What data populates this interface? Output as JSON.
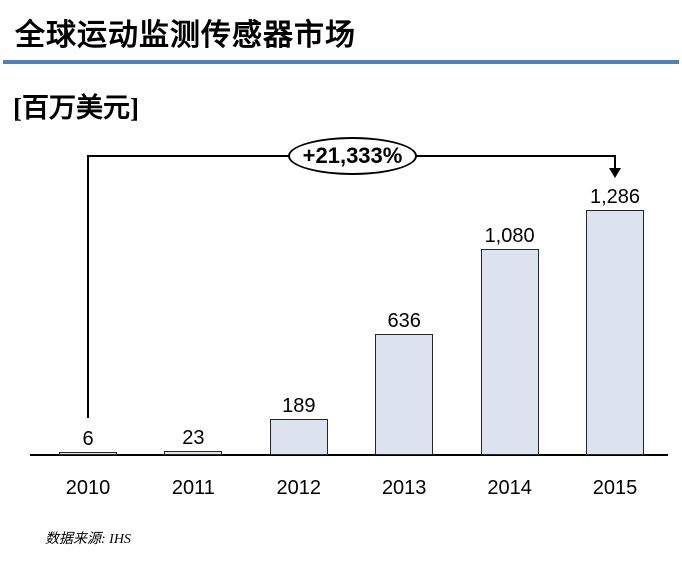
{
  "header": {
    "title": "全球运动监测传感器市场",
    "unit_label": "[百万美元]",
    "accent_color": "#4f81bd"
  },
  "annotation": {
    "growth_label": "+21,333%"
  },
  "footer": {
    "source": "数据来源: IHS"
  },
  "chart_data": {
    "type": "bar",
    "title": "全球运动监测传感器市场",
    "ylabel": "百万美元",
    "xlabel": "",
    "categories": [
      "2010",
      "2011",
      "2012",
      "2013",
      "2014",
      "2015"
    ],
    "values": [
      6,
      23,
      189,
      636,
      1080,
      1286
    ],
    "value_labels": [
      "6",
      "23",
      "189",
      "636",
      "1,080",
      "1,286"
    ],
    "annotation": "+21,333%",
    "annotation_from": "2010",
    "annotation_to": "2015",
    "ylim": [
      0,
      1350
    ],
    "grid": false,
    "legend": false,
    "bar_fill": "#dce3ee",
    "bar_border": "#262626"
  }
}
